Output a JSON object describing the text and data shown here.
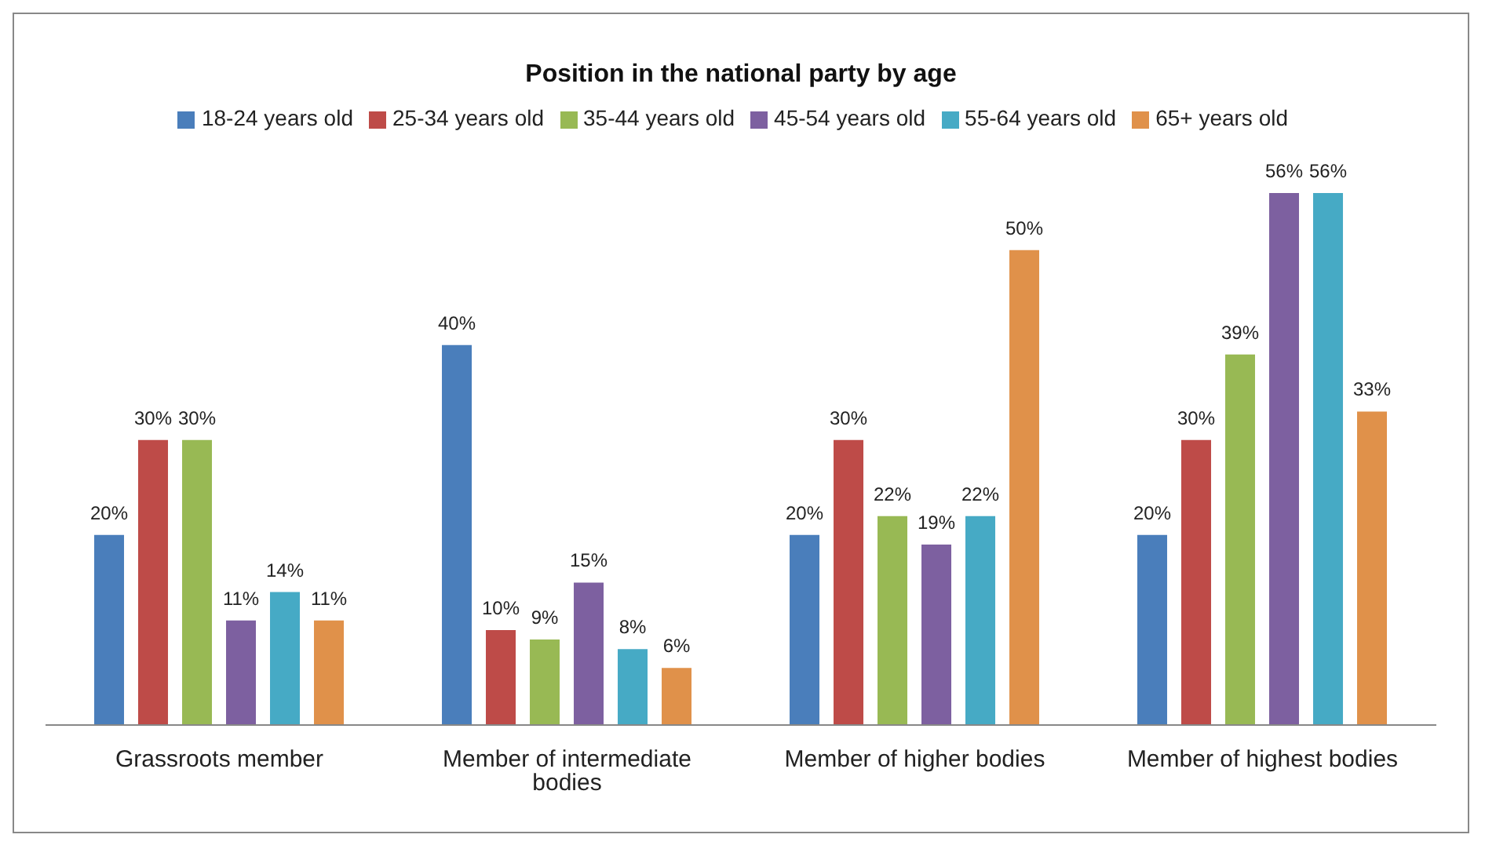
{
  "chart_data": {
    "type": "bar",
    "title": "Position in the national party by age",
    "categories": [
      "Grassroots member",
      "Member of intermediate bodies",
      "Member of higher bodies",
      "Member of highest bodies"
    ],
    "series": [
      {
        "name": "18-24 years old",
        "color": "#4a7ebb",
        "values": [
          20,
          40,
          20,
          20
        ],
        "value_labels": [
          "20%",
          "40%",
          "20%",
          "20%"
        ]
      },
      {
        "name": "25-34 years old",
        "color": "#be4b48",
        "values": [
          30,
          10,
          30,
          30
        ],
        "value_labels": [
          "30%",
          "10%",
          "30%",
          "30%"
        ]
      },
      {
        "name": "35-44 years old",
        "color": "#98b954",
        "values": [
          30,
          9,
          22,
          39
        ],
        "value_labels": [
          "30%",
          "9%",
          "22%",
          "39%"
        ]
      },
      {
        "name": "45-54 years old",
        "color": "#7d60a0",
        "values": [
          11,
          15,
          19,
          56
        ],
        "value_labels": [
          "11%",
          "15%",
          "19%",
          "56%"
        ]
      },
      {
        "name": "55-64 years old",
        "color": "#46aac5",
        "values": [
          14,
          8,
          22,
          56
        ],
        "value_labels": [
          "14%",
          "8%",
          "22%",
          "56%"
        ]
      },
      {
        "name": "65+ years old",
        "color": "#e0914a",
        "values": [
          11,
          6,
          50,
          33
        ],
        "value_labels": [
          "11%",
          "6%",
          "50%",
          "33%"
        ]
      }
    ],
    "legend": "top"
  }
}
